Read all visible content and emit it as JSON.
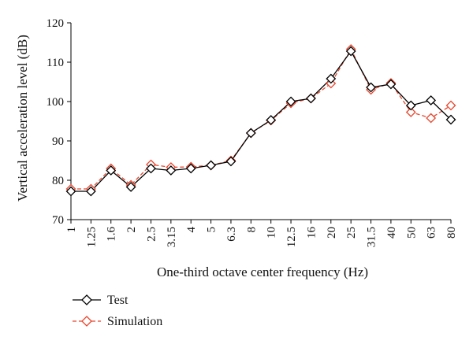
{
  "chart_data": {
    "type": "line",
    "title": "",
    "xlabel": "One-third octave center frequency (Hz)",
    "ylabel": "Vertical acceleration level (dB)",
    "ylim": [
      70,
      120
    ],
    "yticks": [
      "70",
      "80",
      "90",
      "100",
      "110",
      "120"
    ],
    "categories": [
      "1",
      "1.25",
      "1.6",
      "2",
      "2.5",
      "3.15",
      "4",
      "5",
      "6.3",
      "8",
      "10",
      "12.5",
      "16",
      "20",
      "25",
      "31.5",
      "40",
      "50",
      "63",
      "80"
    ],
    "grid": false,
    "legend": "bottom-left",
    "series": [
      {
        "name": "Test",
        "color": "#000000",
        "line": "solid",
        "marker": "diamond",
        "values": [
          77.2,
          77.2,
          82.5,
          78.3,
          83.0,
          82.5,
          83.0,
          83.8,
          84.8,
          92.0,
          95.3,
          100.0,
          100.8,
          105.8,
          112.8,
          103.6,
          104.4,
          99.0,
          100.3,
          95.4
        ]
      },
      {
        "name": "Simulation",
        "color": "#e8462e",
        "line": "dashed",
        "marker": "diamond",
        "values": [
          77.8,
          77.8,
          83.0,
          78.8,
          84.0,
          83.3,
          83.4,
          83.8,
          85.0,
          92.0,
          95.2,
          99.6,
          100.8,
          104.6,
          113.3,
          103.0,
          104.7,
          97.3,
          95.8,
          99.0
        ]
      }
    ]
  }
}
